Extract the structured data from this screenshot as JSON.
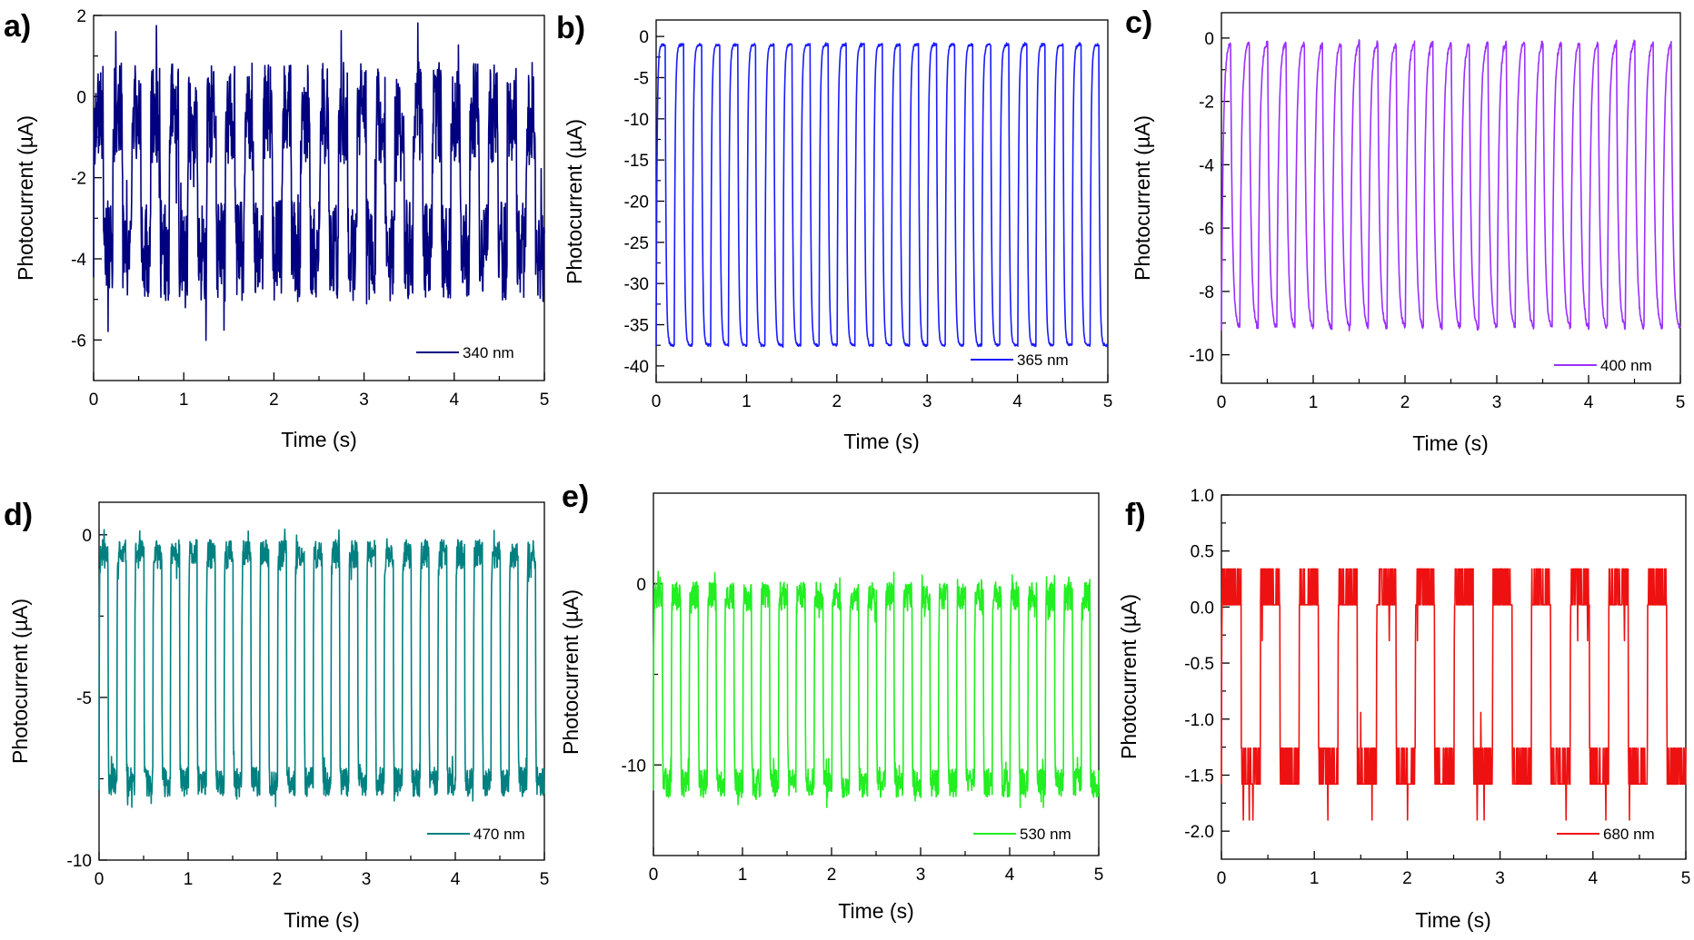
{
  "figure": {
    "panels": [
      {
        "id": "a",
        "letter": "a)",
        "color": "#000080",
        "xlabel": "Time (s)",
        "ylabel": "Photocurrent (µA)",
        "legend": "340 nm",
        "xlim": [
          0,
          5
        ],
        "ylim": [
          -7,
          2
        ],
        "xticks": [
          0,
          1,
          2,
          3,
          4,
          5
        ],
        "xtick_labels": [
          "0",
          "1",
          "2",
          "3",
          "4",
          "5"
        ],
        "yticks": [
          -6,
          -4,
          -2,
          0,
          2
        ],
        "ytick_labels": [
          "-6",
          "-4",
          "-2",
          "0",
          "2"
        ]
      },
      {
        "id": "b",
        "letter": "b)",
        "color": "#1a1aff",
        "xlabel": "Time (s)",
        "ylabel": "Photocurrent (µA)",
        "legend": "365 nm",
        "xlim": [
          0,
          5
        ],
        "ylim": [
          -42,
          2
        ],
        "xticks": [
          0,
          1,
          2,
          3,
          4,
          5
        ],
        "xtick_labels": [
          "0",
          "1",
          "2",
          "3",
          "4",
          "5"
        ],
        "yticks": [
          -40,
          -35,
          -30,
          -25,
          -20,
          -15,
          -10,
          -5,
          0
        ],
        "ytick_labels": [
          "-40",
          "-35",
          "-30",
          "-25",
          "-20",
          "-15",
          "-10",
          "-5",
          "0"
        ]
      },
      {
        "id": "c",
        "letter": "c)",
        "color": "#9b30ff",
        "xlabel": "Time (s)",
        "ylabel": "Photocurrent (µA)",
        "legend": "400 nm",
        "xlim": [
          0,
          5
        ],
        "ylim": [
          -10.9,
          0.8
        ],
        "xticks": [
          0,
          1,
          2,
          3,
          4,
          5
        ],
        "xtick_labels": [
          "0",
          "1",
          "2",
          "3",
          "4",
          "5"
        ],
        "yticks": [
          -10,
          -8,
          -6,
          -4,
          -2,
          0
        ],
        "ytick_labels": [
          "-10",
          "-8",
          "-6",
          "-4",
          "-2",
          "0"
        ]
      },
      {
        "id": "d",
        "letter": "d)",
        "color": "#008080",
        "xlabel": "Time (s)",
        "ylabel": "Photocurrent (µA)",
        "legend": "470 nm",
        "xlim": [
          0,
          5
        ],
        "ylim": [
          -10,
          1
        ],
        "xticks": [
          0,
          1,
          2,
          3,
          4,
          5
        ],
        "xtick_labels": [
          "0",
          "1",
          "2",
          "3",
          "4",
          "5"
        ],
        "yticks": [
          -10,
          -5,
          0
        ],
        "ytick_labels": [
          "-10",
          "-5",
          "0"
        ]
      },
      {
        "id": "e",
        "letter": "e)",
        "color": "#22ee22",
        "xlabel": "Time (s)",
        "ylabel": "Photocurrent (µA)",
        "legend": "530 nm",
        "xlim": [
          0,
          5
        ],
        "ylim": [
          -15,
          5
        ],
        "xticks": [
          0,
          1,
          2,
          3,
          4,
          5
        ],
        "xtick_labels": [
          "0",
          "1",
          "2",
          "3",
          "4",
          "5"
        ],
        "yticks": [
          -10,
          0
        ],
        "ytick_labels": [
          "-10",
          "0"
        ]
      },
      {
        "id": "f",
        "letter": "f)",
        "color": "#ee1111",
        "xlabel": "Time (s)",
        "ylabel": "Photocurrent (µA)",
        "legend": "680 nm",
        "xlim": [
          0,
          5
        ],
        "ylim": [
          -2.25,
          1.0
        ],
        "xticks": [
          0,
          1,
          2,
          3,
          4,
          5
        ],
        "xtick_labels": [
          "0",
          "1",
          "2",
          "3",
          "4",
          "5"
        ],
        "yticks": [
          -2.0,
          -1.5,
          -1.0,
          -0.5,
          0.0,
          0.5,
          1.0
        ],
        "ytick_labels": [
          "-2.0",
          "-1.5",
          "-1.0",
          "-0.5",
          "0.0",
          "0.5",
          "1.0"
        ]
      }
    ]
  },
  "chart_data": [
    {
      "type": "line",
      "panel": "a)",
      "title": "",
      "xlabel": "Time (s)",
      "ylabel": "Photocurrent (µA)",
      "xlim": [
        0,
        5
      ],
      "ylim": [
        -7,
        2
      ],
      "series": [
        {
          "name": "340 nm",
          "color": "#000080",
          "pattern": {
            "cycles": 24,
            "duration_s": 5,
            "on_level": -0.4,
            "off_level": -3.8,
            "noise": 1.25,
            "rise_tau_s": 0.004,
            "seed": 3
          }
        }
      ]
    },
    {
      "type": "line",
      "panel": "b)",
      "title": "",
      "xlabel": "Time (s)",
      "ylabel": "Photocurrent (µA)",
      "xlim": [
        0,
        5
      ],
      "ylim": [
        -42,
        2
      ],
      "series": [
        {
          "name": "365 nm",
          "color": "#1a1aff",
          "pattern": {
            "cycles": 25,
            "duration_s": 5,
            "on_level": -1,
            "off_level": -37.5,
            "noise": 0.15,
            "rise_tau_s": 0.01,
            "seed": 5
          }
        }
      ]
    },
    {
      "type": "line",
      "panel": "c)",
      "title": "",
      "xlabel": "Time (s)",
      "ylabel": "Photocurrent (µA)",
      "xlim": [
        0,
        5
      ],
      "ylim": [
        -10.9,
        0.8
      ],
      "series": [
        {
          "name": "400 nm",
          "color": "#9b30ff",
          "pattern": {
            "cycles": 25,
            "duration_s": 5,
            "on_level": -0.1,
            "off_level": -9.2,
            "noise": 0.08,
            "rise_tau_s": 0.02,
            "seed": 7
          }
        }
      ]
    },
    {
      "type": "line",
      "panel": "d)",
      "title": "",
      "xlabel": "Time (s)",
      "ylabel": "Photocurrent (µA)",
      "xlim": [
        0,
        5
      ],
      "ylim": [
        -10,
        1
      ],
      "series": [
        {
          "name": "470 nm",
          "color": "#008080",
          "pattern": {
            "cycles": 25,
            "duration_s": 5,
            "on_level": -0.6,
            "off_level": -7.6,
            "noise": 0.45,
            "rise_tau_s": 0.003,
            "seed": 11
          }
        }
      ]
    },
    {
      "type": "line",
      "panel": "e)",
      "title": "",
      "xlabel": "Time (s)",
      "ylabel": "Photocurrent (µA)",
      "xlim": [
        0,
        5
      ],
      "ylim": [
        -15,
        5
      ],
      "series": [
        {
          "name": "530 nm",
          "color": "#22ee22",
          "pattern": {
            "cycles": 25,
            "duration_s": 5,
            "on_level": -0.7,
            "off_level": -11,
            "noise": 0.8,
            "rise_tau_s": 0.003,
            "seed": 13
          }
        }
      ]
    },
    {
      "type": "line",
      "panel": "f)",
      "title": "",
      "xlabel": "Time (s)",
      "ylabel": "Photocurrent (µA)",
      "xlim": [
        0,
        5
      ],
      "ylim": [
        -2.25,
        1.0
      ],
      "series": [
        {
          "name": "680 nm",
          "color": "#ee1111",
          "pattern": {
            "cycles": 12,
            "duration_s": 5,
            "on_level": 0.1,
            "off_level": -1.5,
            "noise": 0.22,
            "rise_tau_s": 0.002,
            "quantize": 0.32,
            "seed": 17
          }
        }
      ]
    }
  ]
}
